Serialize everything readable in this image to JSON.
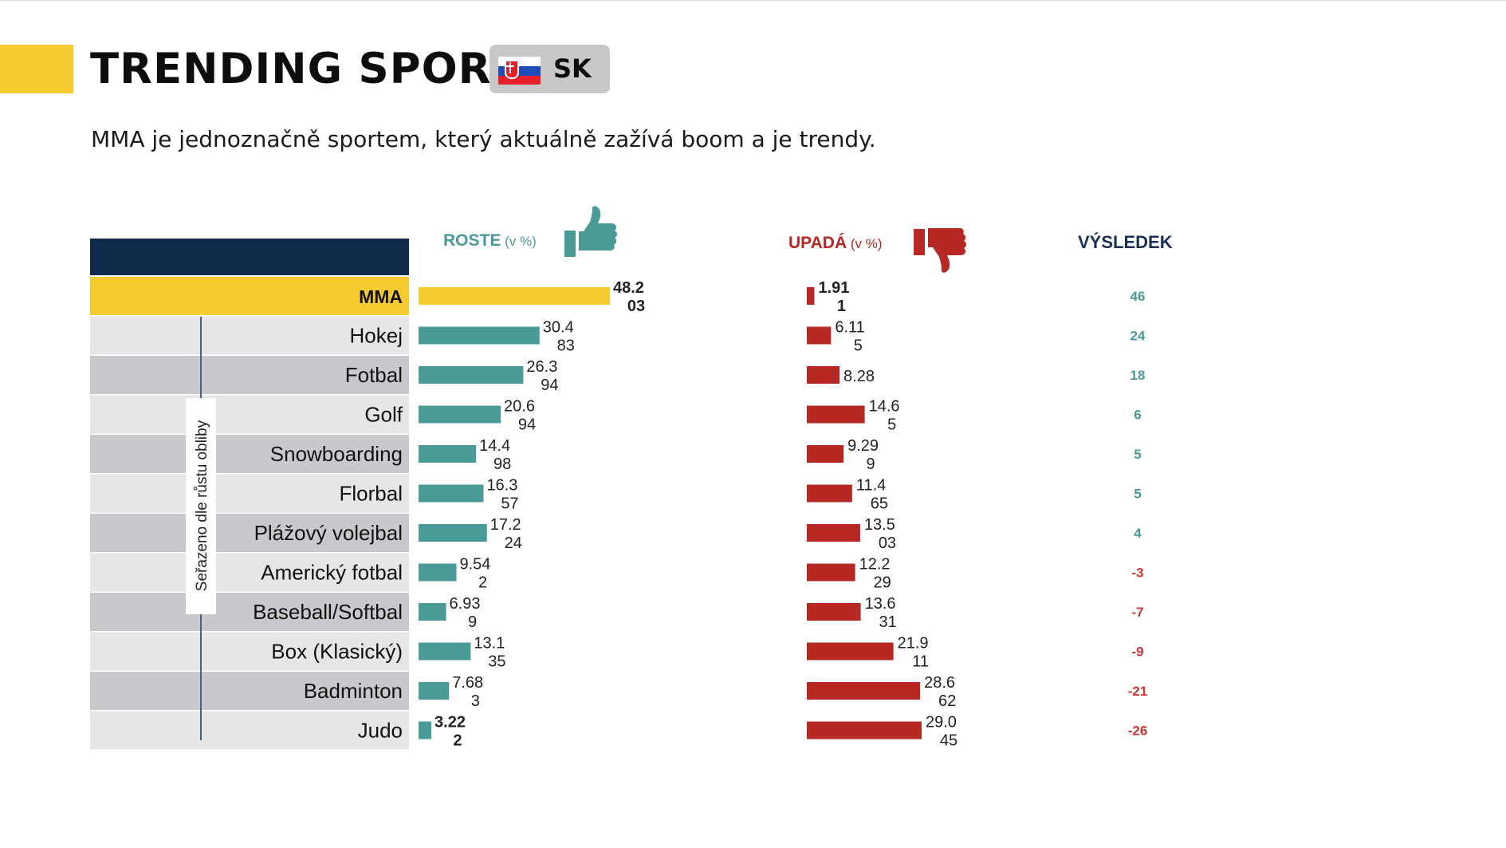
{
  "header": {
    "title": "TRENDING SPORTY",
    "country_code": "SK",
    "subtitle": "MMA je jednoznačně sportem, který aktuálně zažívá boom a je trendy."
  },
  "icons": {
    "flag": "slovakia-flag-icon",
    "grow": "thumbs-up-icon",
    "decline": "thumbs-down-icon"
  },
  "chart_data": {
    "type": "bar",
    "sort_label": "Seřazeno dle růstu obliby",
    "categories": [
      "MMA",
      "Hokej",
      "Fotbal",
      "Golf",
      "Snowboarding",
      "Florbal",
      "Plážový volejbal",
      "Americký fotbal",
      "Baseball/Softbal",
      "Box (Klasický)",
      "Badminton",
      "Judo"
    ],
    "series": [
      {
        "name": "ROSTE",
        "unit": "(v %)",
        "color": "#4a9a98",
        "values": [
          48.203,
          30.483,
          26.394,
          20.694,
          14.498,
          16.357,
          17.224,
          9.542,
          6.939,
          13.135,
          7.683,
          3.222
        ],
        "labels": [
          [
            "48.2",
            "03"
          ],
          [
            "30.4",
            "83"
          ],
          [
            "26.3",
            "94"
          ],
          [
            "20.6",
            "94"
          ],
          [
            "14.4",
            "98"
          ],
          [
            "16.3",
            "57"
          ],
          [
            "17.2",
            "24"
          ],
          [
            "9.54",
            "2"
          ],
          [
            "6.93",
            "9"
          ],
          [
            "13.1",
            "35"
          ],
          [
            "7.68",
            "3"
          ],
          [
            "3.22",
            "2"
          ]
        ]
      },
      {
        "name": "UPADÁ",
        "unit": "(v %)",
        "color": "#b52824",
        "values": [
          1.911,
          6.115,
          8.28,
          14.65,
          9.299,
          11.465,
          13.503,
          12.229,
          13.631,
          21.911,
          28.662,
          29.045
        ],
        "labels": [
          [
            "1.91",
            "1"
          ],
          [
            "6.11",
            "5"
          ],
          [
            "8.28",
            ""
          ],
          [
            "14.6",
            "5"
          ],
          [
            "9.29",
            "9"
          ],
          [
            "11.4",
            "65"
          ],
          [
            "13.5",
            "03"
          ],
          [
            "12.2",
            "29"
          ],
          [
            "13.6",
            "31"
          ],
          [
            "21.9",
            "11"
          ],
          [
            "28.6",
            "62"
          ],
          [
            "29.0",
            "45"
          ]
        ]
      },
      {
        "name": "VÝSLEDEK",
        "values": [
          46,
          24,
          18,
          6,
          5,
          5,
          4,
          -3,
          -7,
          -9,
          -21,
          -26
        ]
      }
    ],
    "colors": {
      "highlight": "#f6cb2f",
      "header": "#0f2a4a",
      "positive": "#4a9a98",
      "negative": "#cc3333",
      "row_light": "#e6e6e8",
      "row_dark": "#c9c9cd"
    }
  }
}
